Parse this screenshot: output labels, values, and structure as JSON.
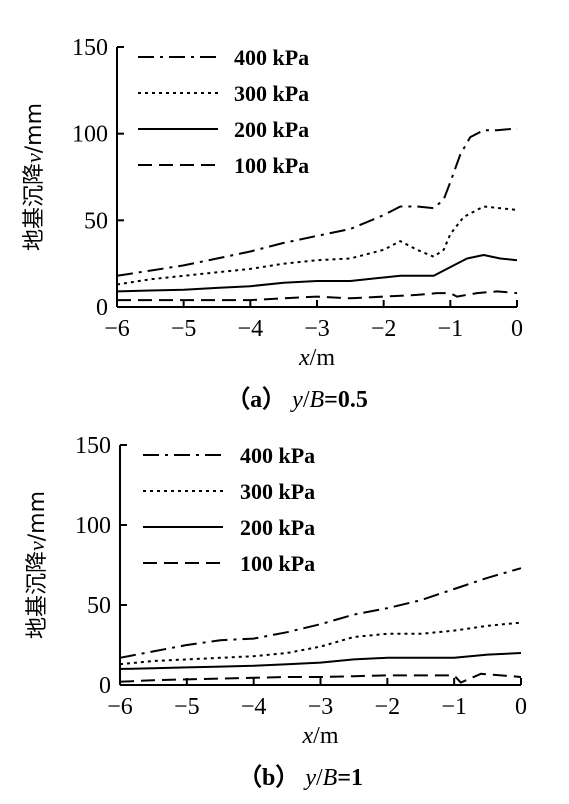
{
  "chart_data": [
    {
      "type": "line",
      "caption": "（a）y/B=0.5",
      "xlabel": "x/m",
      "ylabel": "地基沉降v/mm",
      "xlim": [
        -6,
        0
      ],
      "ylim": [
        0,
        150
      ],
      "xticks": [
        "−6",
        "−5",
        "−4",
        "−3",
        "−2",
        "−1",
        "0"
      ],
      "yticks": [
        "0",
        "50",
        "100",
        "150"
      ],
      "legend_position": "top-left",
      "series": [
        {
          "name": "400 kPa",
          "style": "dashdot",
          "x": [
            -6,
            -5.5,
            -5,
            -4.5,
            -4,
            -3.5,
            -3,
            -2.5,
            -2,
            -1.75,
            -1.5,
            -1.25,
            -1.1,
            -1,
            -0.85,
            -0.7,
            -0.5,
            -0.3,
            0
          ],
          "y": [
            18,
            21,
            24,
            28,
            32,
            37,
            41,
            45,
            53,
            58,
            58,
            57,
            62,
            72,
            88,
            98,
            102,
            102,
            103
          ]
        },
        {
          "name": "300 kPa",
          "style": "dotted",
          "x": [
            -6,
            -5.5,
            -5,
            -4.5,
            -4,
            -3.5,
            -3,
            -2.5,
            -2,
            -1.75,
            -1.5,
            -1.25,
            -1.1,
            -1,
            -0.8,
            -0.5,
            -0.25,
            0
          ],
          "y": [
            13,
            16,
            18,
            20,
            22,
            25,
            27,
            28,
            33,
            38,
            33,
            29,
            33,
            42,
            52,
            58,
            57,
            56
          ]
        },
        {
          "name": "200 kPa",
          "style": "solid",
          "x": [
            -6,
            -5.5,
            -5,
            -4.5,
            -4,
            -3.5,
            -3,
            -2.5,
            -2,
            -1.75,
            -1.5,
            -1.25,
            -1,
            -0.75,
            -0.5,
            -0.25,
            0
          ],
          "y": [
            9,
            9.5,
            10,
            11,
            12,
            14,
            15,
            15,
            17,
            18,
            18,
            18,
            23,
            28,
            30,
            28,
            27
          ]
        },
        {
          "name": "100 kPa",
          "style": "dashed",
          "x": [
            -6,
            -5.5,
            -5,
            -4.5,
            -4,
            -3.5,
            -3,
            -2.5,
            -2,
            -1.5,
            -1.2,
            -1,
            -0.9,
            -0.6,
            -0.3,
            0
          ],
          "y": [
            4,
            4,
            4,
            4,
            4,
            5,
            6,
            5,
            6,
            7,
            8,
            8,
            6,
            8,
            9,
            8
          ]
        }
      ]
    },
    {
      "type": "line",
      "caption": "（b）y/B=1",
      "xlabel": "x/m",
      "ylabel": "地基沉降v/mm",
      "xlim": [
        -6,
        0
      ],
      "ylim": [
        0,
        150
      ],
      "xticks": [
        "−6",
        "−5",
        "−4",
        "−3",
        "−2",
        "−1",
        "0"
      ],
      "yticks": [
        "0",
        "50",
        "100",
        "150"
      ],
      "legend_position": "top-left",
      "series": [
        {
          "name": "400 kPa",
          "style": "dashdot",
          "x": [
            -6,
            -5.5,
            -5,
            -4.5,
            -4,
            -3.5,
            -3,
            -2.5,
            -2,
            -1.5,
            -1,
            -0.5,
            0
          ],
          "y": [
            17,
            21,
            25,
            28,
            29,
            33,
            38,
            44,
            48,
            53,
            60,
            67,
            73
          ]
        },
        {
          "name": "300 kPa",
          "style": "dotted",
          "x": [
            -6,
            -5.5,
            -5,
            -4.5,
            -4,
            -3.5,
            -3,
            -2.5,
            -2,
            -1.5,
            -1,
            -0.5,
            0
          ],
          "y": [
            13,
            15,
            16,
            17,
            18,
            20,
            24,
            30,
            32,
            32,
            34,
            37,
            39
          ]
        },
        {
          "name": "200 kPa",
          "style": "solid",
          "x": [
            -6,
            -5.5,
            -5,
            -4.5,
            -4,
            -3.5,
            -3,
            -2.5,
            -2,
            -1.5,
            -1,
            -0.5,
            0
          ],
          "y": [
            10,
            10.5,
            11,
            11.5,
            12,
            13,
            14,
            16,
            17,
            17,
            17,
            19,
            20
          ]
        },
        {
          "name": "100 kPa",
          "style": "dashed",
          "x": [
            -6,
            -5.5,
            -5,
            -4.5,
            -4,
            -3.5,
            -3,
            -2.5,
            -2,
            -1.5,
            -1,
            -0.9,
            -0.6,
            -0.3,
            0
          ],
          "y": [
            2,
            3,
            3.5,
            4,
            4.5,
            5,
            5,
            5.5,
            6,
            6,
            6,
            1.5,
            7,
            6,
            5
          ]
        }
      ]
    }
  ]
}
